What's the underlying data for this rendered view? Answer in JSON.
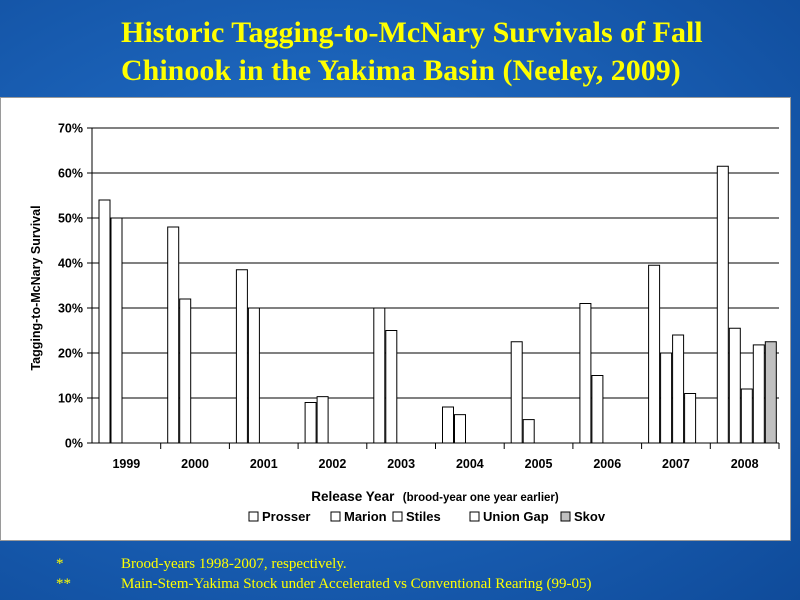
{
  "title": {
    "line1": "Historic Tagging-to-McNary Survivals of Fall",
    "line2": "Chinook in the Yakima Basin (Neeley, 2009)"
  },
  "chart_data": {
    "type": "bar",
    "ylabel": "Tagging-to-McNary Survival",
    "xlabel": "Release Year",
    "xlabel_sub": "(brood-year one year earlier)",
    "ylim": [
      0,
      0.7
    ],
    "yticks": [
      0,
      0.1,
      0.2,
      0.3,
      0.4,
      0.5,
      0.6,
      0.7
    ],
    "ytick_labels": [
      "0%",
      "10%",
      "20%",
      "30%",
      "40%",
      "50%",
      "60%",
      "70%"
    ],
    "grid": true,
    "legend_position": "bottom",
    "categories": [
      "1999",
      "2000",
      "2001",
      "2002",
      "2003",
      "2004",
      "2005",
      "2006",
      "2007",
      "2008"
    ],
    "series": [
      {
        "name": "Prosser",
        "color": "#ffffff",
        "values": [
          0.54,
          0.48,
          0.385,
          0.09,
          0.3,
          0.08,
          0.225,
          0.31,
          0.395,
          0.615
        ]
      },
      {
        "name": "Marion",
        "color": "#ffffff",
        "values": [
          0.5,
          0.32,
          0.3,
          0.103,
          0.25,
          0.063,
          0.052,
          0.15,
          0.2,
          0.255
        ]
      },
      {
        "name": "Stiles",
        "color": "#ffffff",
        "values": [
          null,
          null,
          null,
          null,
          null,
          null,
          null,
          null,
          0.24,
          0.12
        ]
      },
      {
        "name": "Union Gap",
        "color": "#ffffff",
        "values": [
          null,
          null,
          null,
          null,
          null,
          null,
          null,
          null,
          0.11,
          0.218
        ]
      },
      {
        "name": "Skov",
        "color": "#c0c0c0",
        "values": [
          null,
          null,
          null,
          null,
          null,
          null,
          null,
          null,
          null,
          0.225
        ]
      }
    ]
  },
  "footnotes": [
    {
      "mark": "*",
      "text": "Brood-years 1998-2007, respectively."
    },
    {
      "mark": "**",
      "text": "Main-Stem-Yakima Stock under Accelerated vs Conventional Rearing (99-05)"
    }
  ]
}
